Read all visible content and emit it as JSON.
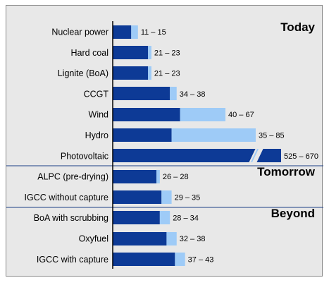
{
  "chart_data": {
    "type": "bar",
    "orientation": "horizontal",
    "stacked_range": true,
    "title": "",
    "xlabel": "",
    "ylabel": "",
    "xlim": [
      0,
      88
    ],
    "axis_break": true,
    "grid": false,
    "colors": {
      "min": "#0d3a96",
      "range": "#9ecbf7",
      "divider": "#1c3f86",
      "background": "#e8e8e8"
    },
    "groups": [
      {
        "label": "Today",
        "first_index": 0,
        "last_index": 6
      },
      {
        "label": "Tomorrow",
        "first_index": 7,
        "last_index": 8
      },
      {
        "label": "Beyond",
        "first_index": 9,
        "last_index": 11
      }
    ],
    "categories": [
      "Nuclear power",
      "Hard coal",
      "Lignite (BoA)",
      "CCGT",
      "Wind",
      "Hydro",
      "Photovoltaic",
      "ALPC (pre-drying)",
      "IGCC without capture",
      "BoA with scrubbing",
      "Oxyfuel",
      "IGCC with capture"
    ],
    "series": [
      {
        "name": "",
        "values": [
          11,
          21,
          21,
          34,
          40,
          35,
          525,
          26,
          29,
          28,
          32,
          37
        ]
      },
      {
        "name": "",
        "values": [
          15,
          23,
          23,
          38,
          67,
          85,
          670,
          28,
          35,
          34,
          38,
          43
        ]
      }
    ],
    "value_labels": [
      "11 – 15",
      "21 – 23",
      "21 – 23",
      "34 – 38",
      "40 – 67",
      "35 – 85",
      "525 – 670",
      "26 – 28",
      "29 – 35",
      "28 – 34",
      "32 – 38",
      "37 – 43"
    ]
  }
}
